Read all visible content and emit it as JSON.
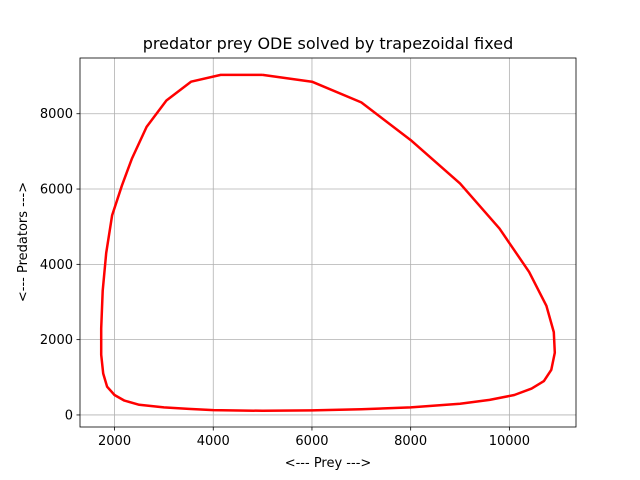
{
  "chart_data": {
    "type": "line",
    "title": "predator prey ODE solved by trapezoidal fixed",
    "xlabel": "<--- Prey --->",
    "ylabel": "<--- Predators --->",
    "xlim": [
      1300,
      11350
    ],
    "ylim": [
      -320,
      9480
    ],
    "xticks": [
      2000,
      4000,
      6000,
      8000,
      10000
    ],
    "yticks": [
      0,
      2000,
      4000,
      6000,
      8000
    ],
    "xtick_labels": [
      "2000",
      "4000",
      "6000",
      "8000",
      "10000"
    ],
    "ytick_labels": [
      "0",
      "2000",
      "4000",
      "6000",
      "8000"
    ],
    "grid": true,
    "line_color": "#ff0000",
    "series": [
      {
        "x": [
          5000,
          6000,
          7000,
          8000,
          9000,
          9800,
          10400,
          10750,
          10900,
          10920,
          10850,
          10700,
          10450,
          10100,
          9600,
          9000,
          8000,
          7000,
          6000,
          5000,
          4000,
          3500,
          3000,
          2500,
          2200,
          2000,
          1850,
          1770,
          1730,
          1730,
          1760,
          1830,
          1950,
          2150,
          2350,
          2650,
          3050,
          3550,
          4150,
          4950
        ],
        "y": [
          9030,
          8850,
          8300,
          7300,
          6150,
          4950,
          3800,
          2900,
          2200,
          1650,
          1200,
          900,
          700,
          530,
          400,
          300,
          200,
          150,
          120,
          110,
          130,
          160,
          200,
          270,
          380,
          530,
          750,
          1100,
          1600,
          2300,
          3300,
          4300,
          5300,
          6100,
          6800,
          7650,
          8350,
          8850,
          9030,
          9030
        ]
      }
    ]
  }
}
